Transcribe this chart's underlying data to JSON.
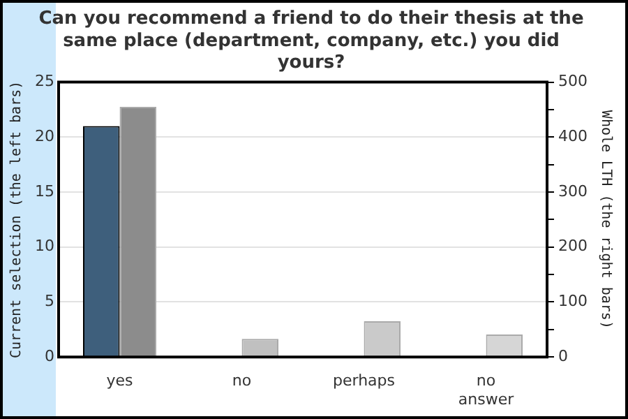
{
  "chart_data": {
    "type": "bar",
    "title": "Can you recommend a friend to do their thesis at the same place (department, company, etc.) you did yours?",
    "ylabel": "Current selection (the left bars)",
    "y2label": "Whole LTH (the right bars)",
    "categories": [
      "yes",
      "no",
      "perhaps",
      "no\nanswer"
    ],
    "series": [
      {
        "color": "#3e5f7c",
        "values": [
          21,
          0,
          0,
          0
        ]
      },
      {
        "axis": "y2",
        "colors": [
          "#8c8c8c",
          "#c0c0c0",
          "#cacaca",
          "#d6d6d6"
        ],
        "values": [
          455,
          33,
          65,
          41
        ]
      }
    ],
    "ylim": [
      0,
      25
    ],
    "yticks": [
      0,
      5,
      10,
      15,
      20,
      25
    ],
    "y2lim": [
      0,
      500
    ],
    "y2ticks": [
      0,
      {
        "value": 50,
        "label": null
      },
      100,
      {
        "value": 150,
        "label": null
      },
      200,
      {
        "value": 250,
        "label": null
      },
      300,
      {
        "value": 350,
        "label": null
      },
      400,
      {
        "value": 450,
        "label": null
      },
      500
    ],
    "grid": "y",
    "legend": false
  }
}
